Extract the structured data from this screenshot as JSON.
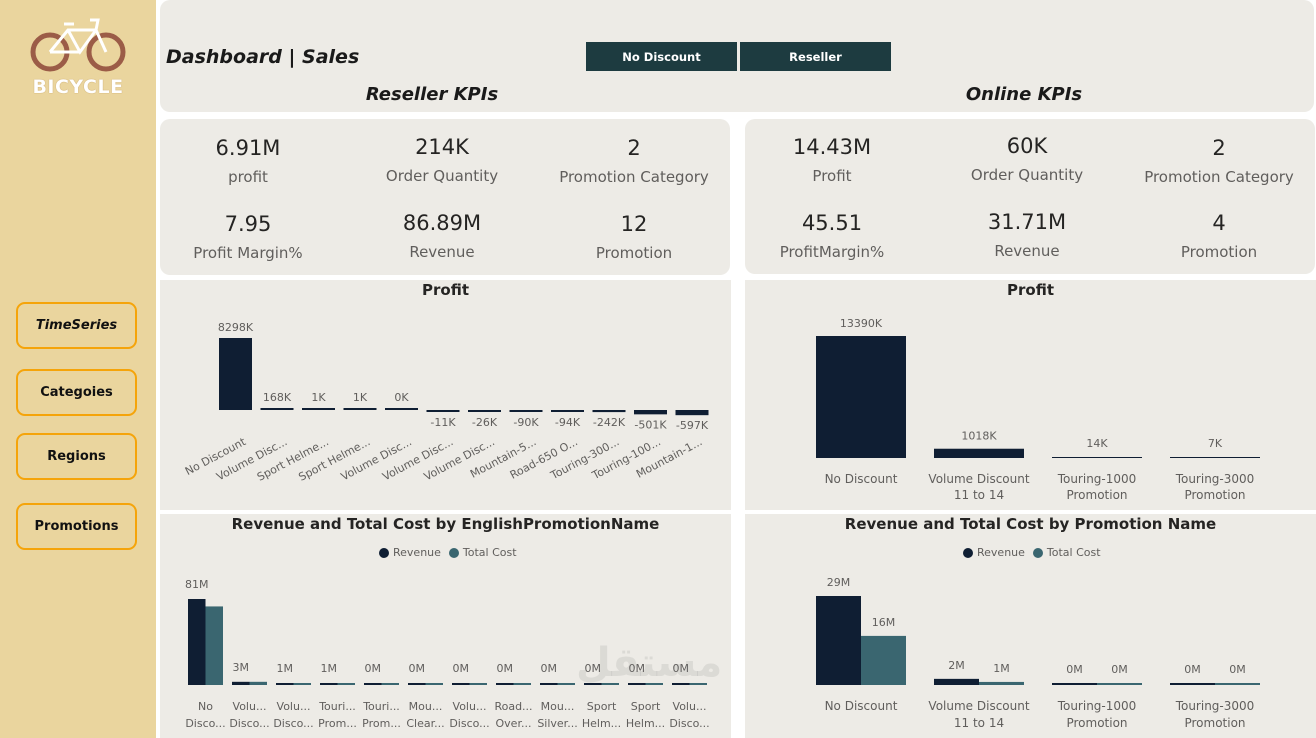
{
  "colors": {
    "navy": "#0f1e33",
    "teal": "#3a6670",
    "accent": "#f5a40a",
    "sidebar": "#ead59e"
  },
  "logo": {
    "text": "BICYCLE",
    "icon": "bicycle-icon"
  },
  "nav": {
    "timeseries": "TimeSeries",
    "categories": "Categoies",
    "regions": "Regions",
    "promotions": "Promotions"
  },
  "header": {
    "title": "Dashboard | Sales",
    "toggle_left": "No Discount",
    "toggle_right": "Reseller"
  },
  "reseller": {
    "title": "Reseller KPIs",
    "kpis": [
      {
        "value": "6.91M",
        "label": "profit"
      },
      {
        "value": "214K",
        "label": "Order Quantity"
      },
      {
        "value": "2",
        "label": "Promotion Category"
      },
      {
        "value": "7.95",
        "label": "Profit Margin%"
      },
      {
        "value": "86.89M",
        "label": "Revenue"
      },
      {
        "value": "12",
        "label": "Promotion"
      }
    ]
  },
  "online": {
    "title": "Online KPIs",
    "kpis": [
      {
        "value": "14.43M",
        "label": "Profit"
      },
      {
        "value": "60K",
        "label": "Order Quantity"
      },
      {
        "value": "2",
        "label": "Promotion Category"
      },
      {
        "value": "45.51",
        "label": "ProfitMargin%"
      },
      {
        "value": "31.71M",
        "label": "Revenue"
      },
      {
        "value": "4",
        "label": "Promotion"
      }
    ]
  },
  "watermark": "مستقل",
  "chart_data": [
    {
      "id": "reseller-profit",
      "type": "bar",
      "title": "Profit",
      "categories": [
        "No Discount",
        "Volume Disc...",
        "Sport Helme...",
        "Sport Helme...",
        "Volume Disc...",
        "Volume Disc...",
        "Volume Disc...",
        "Mountain-5...",
        "Road-650 O...",
        "Touring-300...",
        "Touring-100...",
        "Mountain-1..."
      ],
      "values": [
        8298,
        168,
        1,
        1,
        0,
        -11,
        -26,
        -90,
        -94,
        -242,
        -501,
        -597
      ],
      "labels": [
        "8298K",
        "168K",
        "1K",
        "1K",
        "0K",
        "-11K",
        "-26K",
        "-90K",
        "-94K",
        "-242K",
        "-501K",
        "-597K"
      ],
      "unit": "K"
    },
    {
      "id": "online-profit",
      "type": "bar",
      "title": "Profit",
      "categories": [
        [
          "No Discount"
        ],
        [
          "Volume Discount",
          "11 to 14"
        ],
        [
          "Touring-1000",
          "Promotion"
        ],
        [
          "Touring-3000",
          "Promotion"
        ]
      ],
      "values": [
        13390,
        1018,
        14,
        7
      ],
      "labels": [
        "13390K",
        "1018K",
        "14K",
        "7K"
      ],
      "unit": "K"
    },
    {
      "id": "reseller-revenue-cost",
      "type": "bar",
      "title": "Revenue and Total Cost by EnglishPromotionName",
      "legend": [
        "Revenue",
        "Total Cost"
      ],
      "categories": [
        [
          "No",
          "Disco..."
        ],
        [
          "Volu...",
          "Disco..."
        ],
        [
          "Volu...",
          "Disco..."
        ],
        [
          "Touri...",
          "Prom..."
        ],
        [
          "Touri...",
          "Prom..."
        ],
        [
          "Mou...",
          "Clear..."
        ],
        [
          "Volu...",
          "Disco..."
        ],
        [
          "Road...",
          "Over..."
        ],
        [
          "Mou...",
          "Silver..."
        ],
        [
          "Sport",
          "Helm..."
        ],
        [
          "Sport",
          "Helm..."
        ],
        [
          "Volu...",
          "Disco..."
        ]
      ],
      "series": [
        {
          "name": "Revenue",
          "values": [
            81,
            3,
            1,
            1,
            0.3,
            0.2,
            0.2,
            0.2,
            0.2,
            0.2,
            0.2,
            0.2
          ]
        },
        {
          "name": "Total Cost",
          "values": [
            74,
            3,
            1,
            1,
            0.3,
            0.2,
            0.2,
            0.2,
            0.2,
            0.2,
            0.2,
            0.2
          ]
        }
      ],
      "labels": [
        "81M",
        "3M",
        "1M",
        "1M",
        "0M",
        "0M",
        "0M",
        "0M",
        "0M",
        "0M",
        "0M",
        "0M"
      ]
    },
    {
      "id": "online-revenue-cost",
      "type": "bar",
      "title": "Revenue and Total Cost by Promotion Name",
      "legend": [
        "Revenue",
        "Total Cost"
      ],
      "categories": [
        [
          "No Discount"
        ],
        [
          "Volume Discount",
          "11 to 14"
        ],
        [
          "Touring-1000",
          "Promotion"
        ],
        [
          "Touring-3000",
          "Promotion"
        ]
      ],
      "series": [
        {
          "name": "Revenue",
          "values": [
            29,
            2,
            0.1,
            0.1
          ],
          "labels": [
            "29M",
            "2M",
            "0M",
            "0M"
          ]
        },
        {
          "name": "Total Cost",
          "values": [
            16,
            1,
            0.1,
            0.1
          ],
          "labels": [
            "16M",
            "1M",
            "0M",
            "0M"
          ]
        }
      ]
    }
  ]
}
